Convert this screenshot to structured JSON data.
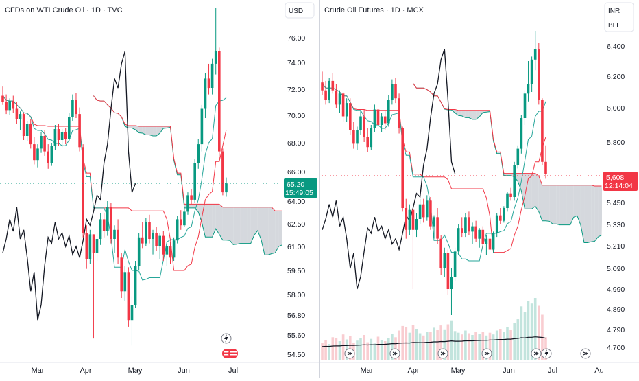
{
  "theme": {
    "up": "#089981",
    "down": "#f23645",
    "base": "#131722",
    "tenkan": "#26a69a",
    "kijun": "#f23645",
    "lagging": "#131722",
    "cloud_fill": "#c7cbd1",
    "cloud_fill_up": "#b8dfd2",
    "grid": "#f0f3fa",
    "axis_text": "#131722",
    "price_badge_bg": "#089981",
    "price_badge_red": "#f23645"
  },
  "chart_data": [
    {
      "type": "candlestick",
      "title": "CFDs on WTI Crude Oil · 1D · TVC",
      "currency_button": "USD",
      "y_tick_labels": [
        "76.00",
        "74.00",
        "72.00",
        "70.00",
        "68.00",
        "66.00",
        "64.00",
        "62.50",
        "61.00",
        "59.50",
        "58.00",
        "56.80",
        "55.60",
        "54.50"
      ],
      "x_tick_labels": [
        "Mar",
        "Apr",
        "May",
        "Jun",
        "Jul"
      ],
      "last_price": "65.20",
      "countdown": "15:49:05",
      "ylim": [
        54.0,
        78.0
      ],
      "log_scale": true,
      "grid": false,
      "indicators": [
        "Ichimoku Cloud"
      ],
      "ohlc": [
        [
          71.5,
          72.2,
          70.8,
          71.0
        ],
        [
          71.0,
          71.6,
          70.1,
          70.4
        ],
        [
          70.4,
          71.3,
          70.0,
          71.1
        ],
        [
          71.1,
          71.5,
          70.2,
          70.5
        ],
        [
          70.5,
          71.0,
          69.4,
          69.7
        ],
        [
          69.7,
          70.3,
          68.9,
          70.1
        ],
        [
          70.1,
          70.2,
          68.2,
          68.5
        ],
        [
          68.5,
          69.6,
          68.1,
          69.4
        ],
        [
          69.4,
          69.7,
          67.6,
          67.9
        ],
        [
          67.9,
          68.4,
          66.5,
          66.8
        ],
        [
          66.8,
          67.9,
          66.3,
          67.6
        ],
        [
          67.6,
          68.8,
          67.3,
          68.5
        ],
        [
          68.5,
          68.9,
          67.1,
          67.4
        ],
        [
          67.4,
          67.9,
          66.2,
          66.6
        ],
        [
          66.6,
          68.0,
          66.4,
          67.8
        ],
        [
          67.8,
          69.3,
          67.5,
          69.0
        ],
        [
          69.0,
          69.4,
          67.8,
          68.2
        ],
        [
          68.2,
          69.0,
          67.7,
          68.8
        ],
        [
          68.8,
          69.1,
          67.9,
          68.3
        ],
        [
          68.3,
          70.2,
          68.1,
          69.9
        ],
        [
          69.9,
          71.6,
          69.6,
          71.2
        ],
        [
          71.2,
          71.7,
          69.8,
          70.1
        ],
        [
          70.1,
          70.6,
          67.4,
          67.7
        ],
        [
          67.7,
          67.9,
          61.6,
          61.9
        ],
        [
          61.9,
          62.4,
          59.6,
          60.2
        ],
        [
          60.2,
          62.1,
          59.9,
          61.8
        ],
        [
          61.8,
          61.8,
          55.4,
          60.6
        ],
        [
          60.6,
          61.9,
          60.1,
          61.5
        ],
        [
          61.5,
          63.2,
          61.1,
          62.8
        ],
        [
          62.8,
          63.2,
          61.6,
          62.0
        ],
        [
          62.0,
          64.0,
          61.7,
          63.6
        ],
        [
          63.6,
          63.9,
          61.2,
          61.5
        ],
        [
          61.5,
          62.4,
          60.6,
          62.1
        ],
        [
          62.1,
          62.8,
          59.9,
          60.3
        ],
        [
          60.3,
          60.6,
          57.8,
          58.2
        ],
        [
          58.2,
          59.8,
          57.6,
          59.4
        ],
        [
          59.4,
          59.7,
          56.1,
          56.5
        ],
        [
          56.5,
          57.9,
          55.0,
          57.4
        ],
        [
          57.4,
          60.1,
          57.2,
          59.8
        ],
        [
          59.8,
          61.9,
          59.5,
          61.6
        ],
        [
          61.6,
          62.6,
          60.9,
          61.2
        ],
        [
          61.2,
          62.9,
          61.0,
          62.6
        ],
        [
          62.6,
          63.1,
          61.2,
          61.5
        ],
        [
          61.5,
          62.1,
          60.5,
          61.9
        ],
        [
          61.9,
          62.3,
          60.7,
          61.0
        ],
        [
          61.0,
          61.9,
          60.2,
          61.7
        ],
        [
          61.7,
          62.0,
          60.1,
          60.5
        ],
        [
          60.5,
          61.2,
          59.8,
          61.0
        ],
        [
          61.0,
          61.3,
          59.9,
          60.3
        ],
        [
          60.3,
          61.6,
          60.1,
          61.4
        ],
        [
          61.4,
          63.0,
          61.2,
          62.8
        ],
        [
          62.8,
          63.4,
          62.1,
          62.4
        ],
        [
          62.4,
          63.6,
          62.3,
          63.3
        ],
        [
          63.3,
          64.6,
          63.1,
          64.4
        ],
        [
          64.4,
          64.8,
          63.8,
          64.1
        ],
        [
          64.1,
          66.9,
          63.9,
          66.6
        ],
        [
          66.6,
          68.3,
          66.2,
          67.9
        ],
        [
          67.9,
          70.8,
          67.4,
          70.5
        ],
        [
          70.5,
          73.2,
          69.8,
          72.8
        ],
        [
          72.8,
          73.9,
          71.6,
          72.1
        ],
        [
          72.1,
          74.3,
          71.6,
          73.9
        ],
        [
          73.9,
          78.4,
          73.1,
          74.9
        ],
        [
          74.9,
          75.2,
          66.9,
          67.4
        ],
        [
          67.4,
          67.6,
          64.4,
          64.6
        ],
        [
          64.6,
          65.6,
          64.3,
          65.2
        ]
      ]
    },
    {
      "type": "candlestick",
      "title": "Crude Oil Futures · 1D · MCX",
      "currency_button": "INR",
      "currency_button_2": "BLL",
      "y_tick_labels": [
        "6,400",
        "6,200",
        "6,000",
        "5,800",
        "5,600",
        "5,450",
        "5,330",
        "5,210",
        "5,090",
        "4,990",
        "4,890",
        "4,790",
        "4,700"
      ],
      "x_tick_labels": [
        "Mar",
        "Apr",
        "May",
        "Jun",
        "Jul",
        "Au"
      ],
      "last_price": "5,608",
      "countdown": "12:14:04",
      "ylim": [
        4650,
        6560
      ],
      "log_scale": true,
      "grid": false,
      "indicators": [
        "Ichimoku Cloud",
        "Volume"
      ],
      "ohlc": [
        [
          6160,
          6230,
          6080,
          6110
        ],
        [
          6110,
          6170,
          6020,
          6050
        ],
        [
          6050,
          6190,
          6030,
          6170
        ],
        [
          6170,
          6220,
          6090,
          6110
        ],
        [
          6110,
          6150,
          6000,
          6020
        ],
        [
          6020,
          6110,
          5970,
          6090
        ],
        [
          6090,
          6100,
          5920,
          5950
        ],
        [
          5950,
          6060,
          5920,
          6030
        ],
        [
          6030,
          6060,
          5840,
          5870
        ],
        [
          5870,
          5920,
          5760,
          5790
        ],
        [
          5790,
          5890,
          5750,
          5870
        ],
        [
          5870,
          5980,
          5840,
          5950
        ],
        [
          5950,
          5990,
          5800,
          5830
        ],
        [
          5830,
          5880,
          5740,
          5770
        ],
        [
          5770,
          5900,
          5750,
          5880
        ],
        [
          5880,
          6020,
          5860,
          5990
        ],
        [
          5990,
          6020,
          5870,
          5900
        ],
        [
          5900,
          5970,
          5860,
          5950
        ],
        [
          5950,
          5980,
          5870,
          5910
        ],
        [
          5910,
          6080,
          5890,
          6050
        ],
        [
          6050,
          6180,
          6020,
          6150
        ],
        [
          6150,
          6190,
          6030,
          6060
        ],
        [
          6060,
          6090,
          5850,
          5880
        ],
        [
          5880,
          5890,
          5400,
          5420
        ],
        [
          5420,
          5470,
          5250,
          5300
        ],
        [
          5300,
          5440,
          5270,
          5410
        ],
        [
          5410,
          5420,
          4990,
          5300
        ],
        [
          5300,
          5390,
          5260,
          5360
        ],
        [
          5360,
          5470,
          5330,
          5440
        ],
        [
          5440,
          5470,
          5340,
          5370
        ],
        [
          5370,
          5490,
          5350,
          5460
        ],
        [
          5460,
          5480,
          5300,
          5320
        ],
        [
          5320,
          5380,
          5250,
          5370
        ],
        [
          5370,
          5420,
          5220,
          5250
        ],
        [
          5250,
          5270,
          5060,
          5090
        ],
        [
          5090,
          5200,
          5050,
          5170
        ],
        [
          5170,
          5190,
          4960,
          4990
        ],
        [
          4990,
          5090,
          4860,
          5050
        ],
        [
          5050,
          5200,
          5030,
          5180
        ],
        [
          5180,
          5330,
          5160,
          5310
        ],
        [
          5310,
          5370,
          5260,
          5280
        ],
        [
          5280,
          5390,
          5260,
          5370
        ],
        [
          5370,
          5400,
          5270,
          5290
        ],
        [
          5290,
          5340,
          5220,
          5320
        ],
        [
          5320,
          5350,
          5230,
          5250
        ],
        [
          5250,
          5310,
          5200,
          5300
        ],
        [
          5300,
          5320,
          5190,
          5220
        ],
        [
          5220,
          5270,
          5160,
          5250
        ],
        [
          5250,
          5280,
          5170,
          5190
        ],
        [
          5190,
          5290,
          5170,
          5280
        ],
        [
          5280,
          5390,
          5260,
          5380
        ],
        [
          5380,
          5420,
          5330,
          5350
        ],
        [
          5350,
          5430,
          5340,
          5420
        ],
        [
          5420,
          5510,
          5400,
          5500
        ],
        [
          5500,
          5530,
          5460,
          5480
        ],
        [
          5480,
          5680,
          5460,
          5660
        ],
        [
          5660,
          5780,
          5640,
          5760
        ],
        [
          5760,
          5960,
          5730,
          5940
        ],
        [
          5940,
          6110,
          5900,
          6090
        ],
        [
          6090,
          6300,
          6040,
          6150
        ],
        [
          6150,
          6330,
          6100,
          6310
        ],
        [
          6310,
          6500,
          6240,
          6380
        ],
        [
          6380,
          6420,
          6020,
          6050
        ],
        [
          6050,
          6060,
          5660,
          5680
        ],
        [
          5680,
          5780,
          5580,
          5608
        ]
      ],
      "volume": [
        30,
        35,
        28,
        40,
        38,
        33,
        45,
        36,
        42,
        30,
        34,
        39,
        44,
        31,
        37,
        29,
        41,
        35,
        33,
        38,
        46,
        40,
        52,
        60,
        58,
        48,
        62,
        55,
        47,
        43,
        50,
        49,
        57,
        53,
        61,
        54,
        63,
        70,
        51,
        48,
        45,
        52,
        47,
        44,
        49,
        46,
        50,
        43,
        48,
        45,
        52,
        55,
        49,
        58,
        53,
        66,
        72,
        95,
        85,
        104,
        100,
        110,
        96,
        80,
        40
      ]
    }
  ],
  "badges": [
    {
      "text": "65.20"
    },
    {
      "text": "15:49:05"
    },
    {
      "text": "5,608"
    },
    {
      "text": "12:14:04"
    }
  ]
}
